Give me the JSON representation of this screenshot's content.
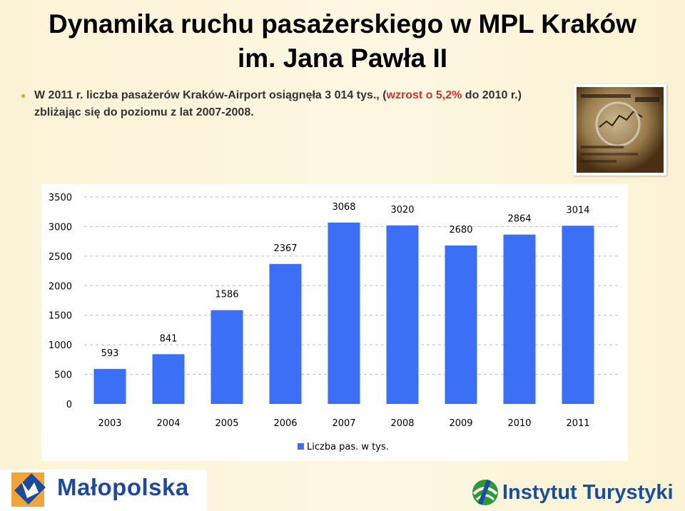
{
  "slide": {
    "title_line1": "Dynamika ruchu pasażerskiego w MPL Kraków",
    "title_line2": "im. Jana Pawła II",
    "bullet_part1": "W 2011 r. liczba pasażerów Kraków-Airport osiągnęła 3 014 tys., ",
    "bullet_part2": "(",
    "bullet_part3": "wzrost o 5,2%",
    "bullet_part4": " do 2010 r.)",
    "bullet_line2": "zbliżając się do poziomu z lat 2007-2008.",
    "photo_icon": "financial-newspaper-magnifier-photo"
  },
  "chart_data": {
    "type": "bar",
    "categories": [
      "2003",
      "2004",
      "2005",
      "2006",
      "2007",
      "2008",
      "2009",
      "2010",
      "2011"
    ],
    "series": [
      {
        "name": "Liczba pas. w tys.",
        "values": [
          593,
          841,
          1586,
          2367,
          3068,
          3020,
          2680,
          2864,
          3014
        ]
      }
    ],
    "data_labels": [
      "593",
      "841",
      "1586",
      "2367",
      "3068",
      "3020",
      "2680",
      "2864",
      "3014"
    ],
    "y_ticks": [
      "0",
      "500",
      "1000",
      "1500",
      "2000",
      "2500",
      "3000",
      "3500"
    ],
    "ylim": [
      0,
      3500
    ],
    "grid": true,
    "legend_position": "bottom",
    "bar_color": "#3b6ff5",
    "title": "",
    "xlabel": "",
    "ylabel": ""
  },
  "footer": {
    "left_logo_text": "Małopolska",
    "left_logo_icon": "malopolska-eagle-logo",
    "right_logo_text": "Instytut Turystyki",
    "right_logo_icon": "instytut-turystyki-logo"
  }
}
